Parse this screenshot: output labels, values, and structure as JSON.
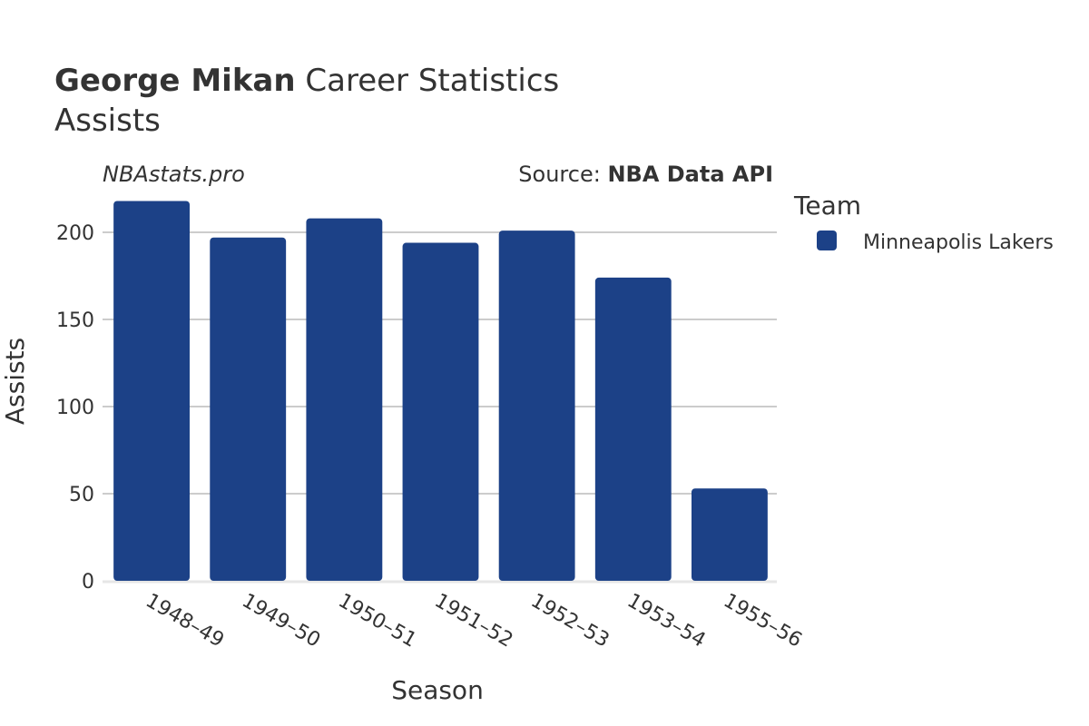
{
  "title": {
    "player": "George Mikan",
    "rest": " Career Statistics",
    "subtitle": "Assists"
  },
  "watermark": "NBAstats.pro",
  "source": {
    "prefix": "Source: ",
    "name": "NBA Data API"
  },
  "legend": {
    "title": "Team",
    "items": [
      {
        "label": "Minneapolis Lakers",
        "color": "#1c4187"
      }
    ]
  },
  "chart_data": {
    "type": "bar",
    "categories": [
      "1948–49",
      "1949–50",
      "1950–51",
      "1951–52",
      "1952–53",
      "1953–54",
      "1955–56"
    ],
    "series": [
      {
        "name": "Minneapolis Lakers",
        "color": "#1c4187",
        "values": [
          218,
          197,
          208,
          194,
          201,
          174,
          53
        ]
      }
    ],
    "xlabel": "Season",
    "ylabel": "Assists",
    "ylim": [
      0,
      225
    ],
    "yticks": [
      0,
      50,
      100,
      150,
      200
    ],
    "grid": true,
    "legend_position": "right"
  }
}
